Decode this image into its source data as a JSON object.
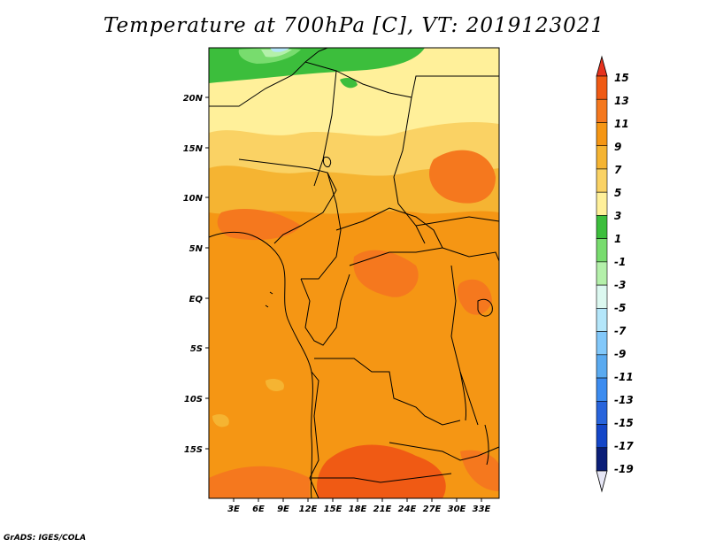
{
  "title": "Temperature at 700hPa [C], VT: 2019123021",
  "footer": "GrADS: IGES/COLA",
  "map": {
    "lat_labels": [
      "20N",
      "15N",
      "10N",
      "5N",
      "EQ",
      "5S",
      "10S",
      "15S"
    ],
    "lon_labels": [
      "3E",
      "6E",
      "9E",
      "12E",
      "15E",
      "18E",
      "21E",
      "24E",
      "27E",
      "30E",
      "33E"
    ]
  },
  "colorbar": {
    "labels": [
      "15",
      "13",
      "11",
      "9",
      "7",
      "5",
      "3",
      "1",
      "-1",
      "-3",
      "-5",
      "-7",
      "-9",
      "-11",
      "-13",
      "-15",
      "-17",
      "-19"
    ],
    "colors": [
      "#e6321e",
      "#f05a14",
      "#f5781e",
      "#f59614",
      "#f5b432",
      "#fad264",
      "#fff09a",
      "#3cbe3c",
      "#78dc6e",
      "#b4f0aa",
      "#dcf8f0",
      "#b4e6fa",
      "#82c8fa",
      "#5aaaf0",
      "#3c8cf0",
      "#2864dc",
      "#1446c8",
      "#0a1e78"
    ],
    "bottom_color": "#e6e6f5"
  }
}
